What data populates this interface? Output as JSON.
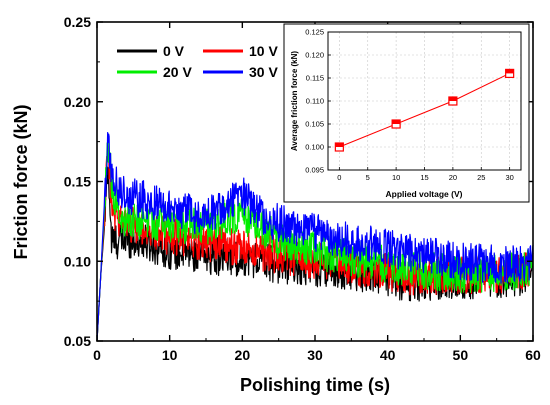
{
  "chart_data": [
    {
      "type": "line",
      "xlabel": "Polishing time (s)",
      "ylabel": "Friction force (kN)",
      "xlim": [
        0,
        60
      ],
      "ylim": [
        0.05,
        0.25
      ],
      "x_ticks": [
        "0",
        "10",
        "20",
        "30",
        "40",
        "50",
        "60"
      ],
      "y_ticks": [
        "0.05",
        "0.10",
        "0.15",
        "0.20",
        "0.25"
      ],
      "legend_position": "top-left",
      "noise_note_amplitude": 0.012,
      "series": [
        {
          "name": "0 V",
          "color": "#000000",
          "x": [
            0,
            0.5,
            1.0,
            1.5,
            2,
            3,
            5,
            8,
            10,
            12,
            15,
            18,
            20,
            25,
            30,
            35,
            40,
            42,
            45,
            50,
            55,
            58,
            59.8,
            60
          ],
          "y": [
            0.05,
            0.09,
            0.12,
            0.162,
            0.112,
            0.113,
            0.114,
            0.11,
            0.107,
            0.106,
            0.104,
            0.102,
            0.103,
            0.098,
            0.096,
            0.094,
            0.09,
            0.086,
            0.087,
            0.088,
            0.089,
            0.09,
            0.094,
            0.105
          ]
        },
        {
          "name": "10 V",
          "color": "#ff0000",
          "x": [
            0,
            0.5,
            1.0,
            1.5,
            2,
            3,
            5,
            8,
            10,
            12,
            15,
            18,
            20,
            25,
            30,
            35,
            40,
            42,
            45,
            50,
            55,
            58,
            59.8,
            60
          ],
          "y": [
            0.05,
            0.09,
            0.125,
            0.17,
            0.132,
            0.127,
            0.122,
            0.118,
            0.116,
            0.114,
            0.112,
            0.11,
            0.108,
            0.104,
            0.1,
            0.097,
            0.094,
            0.09,
            0.091,
            0.091,
            0.092,
            0.093,
            0.097,
            0.105
          ]
        },
        {
          "name": "20 V",
          "color": "#00ee00",
          "x": [
            0,
            0.5,
            1.0,
            1.5,
            2,
            3,
            5,
            8,
            10,
            12,
            15,
            17,
            18,
            20,
            22,
            25,
            30,
            35,
            40,
            45,
            50,
            55,
            58,
            59.8,
            60
          ],
          "y": [
            0.05,
            0.09,
            0.13,
            0.172,
            0.15,
            0.128,
            0.126,
            0.125,
            0.124,
            0.122,
            0.121,
            0.125,
            0.128,
            0.13,
            0.122,
            0.113,
            0.107,
            0.102,
            0.098,
            0.094,
            0.092,
            0.093,
            0.094,
            0.096,
            0.11
          ]
        },
        {
          "name": "30 V",
          "color": "#0000ff",
          "x": [
            0,
            0.5,
            1.0,
            1.5,
            2,
            3,
            5,
            8,
            10,
            12,
            14,
            16,
            18,
            20,
            22,
            25,
            30,
            35,
            40,
            45,
            50,
            55,
            58,
            59.8,
            60
          ],
          "y": [
            0.05,
            0.09,
            0.135,
            0.178,
            0.155,
            0.145,
            0.14,
            0.137,
            0.135,
            0.132,
            0.128,
            0.13,
            0.138,
            0.142,
            0.13,
            0.124,
            0.118,
            0.113,
            0.108,
            0.104,
            0.1,
            0.098,
            0.098,
            0.1,
            0.11
          ]
        }
      ]
    },
    {
      "type": "line",
      "xlabel": "Applied voltage (V)",
      "ylabel": "Average friction force (kN)",
      "xlim": [
        -2,
        32
      ],
      "ylim": [
        0.095,
        0.125
      ],
      "x_ticks": [
        "0",
        "5",
        "10",
        "15",
        "20",
        "25",
        "30"
      ],
      "y_ticks": [
        "0.095",
        "0.100",
        "0.105",
        "0.110",
        "0.115",
        "0.120",
        "0.125"
      ],
      "series": [
        {
          "color": "#ff0000",
          "x": [
            0,
            10,
            20,
            30
          ],
          "y": [
            0.1,
            0.105,
            0.11,
            0.116
          ]
        }
      ]
    }
  ]
}
